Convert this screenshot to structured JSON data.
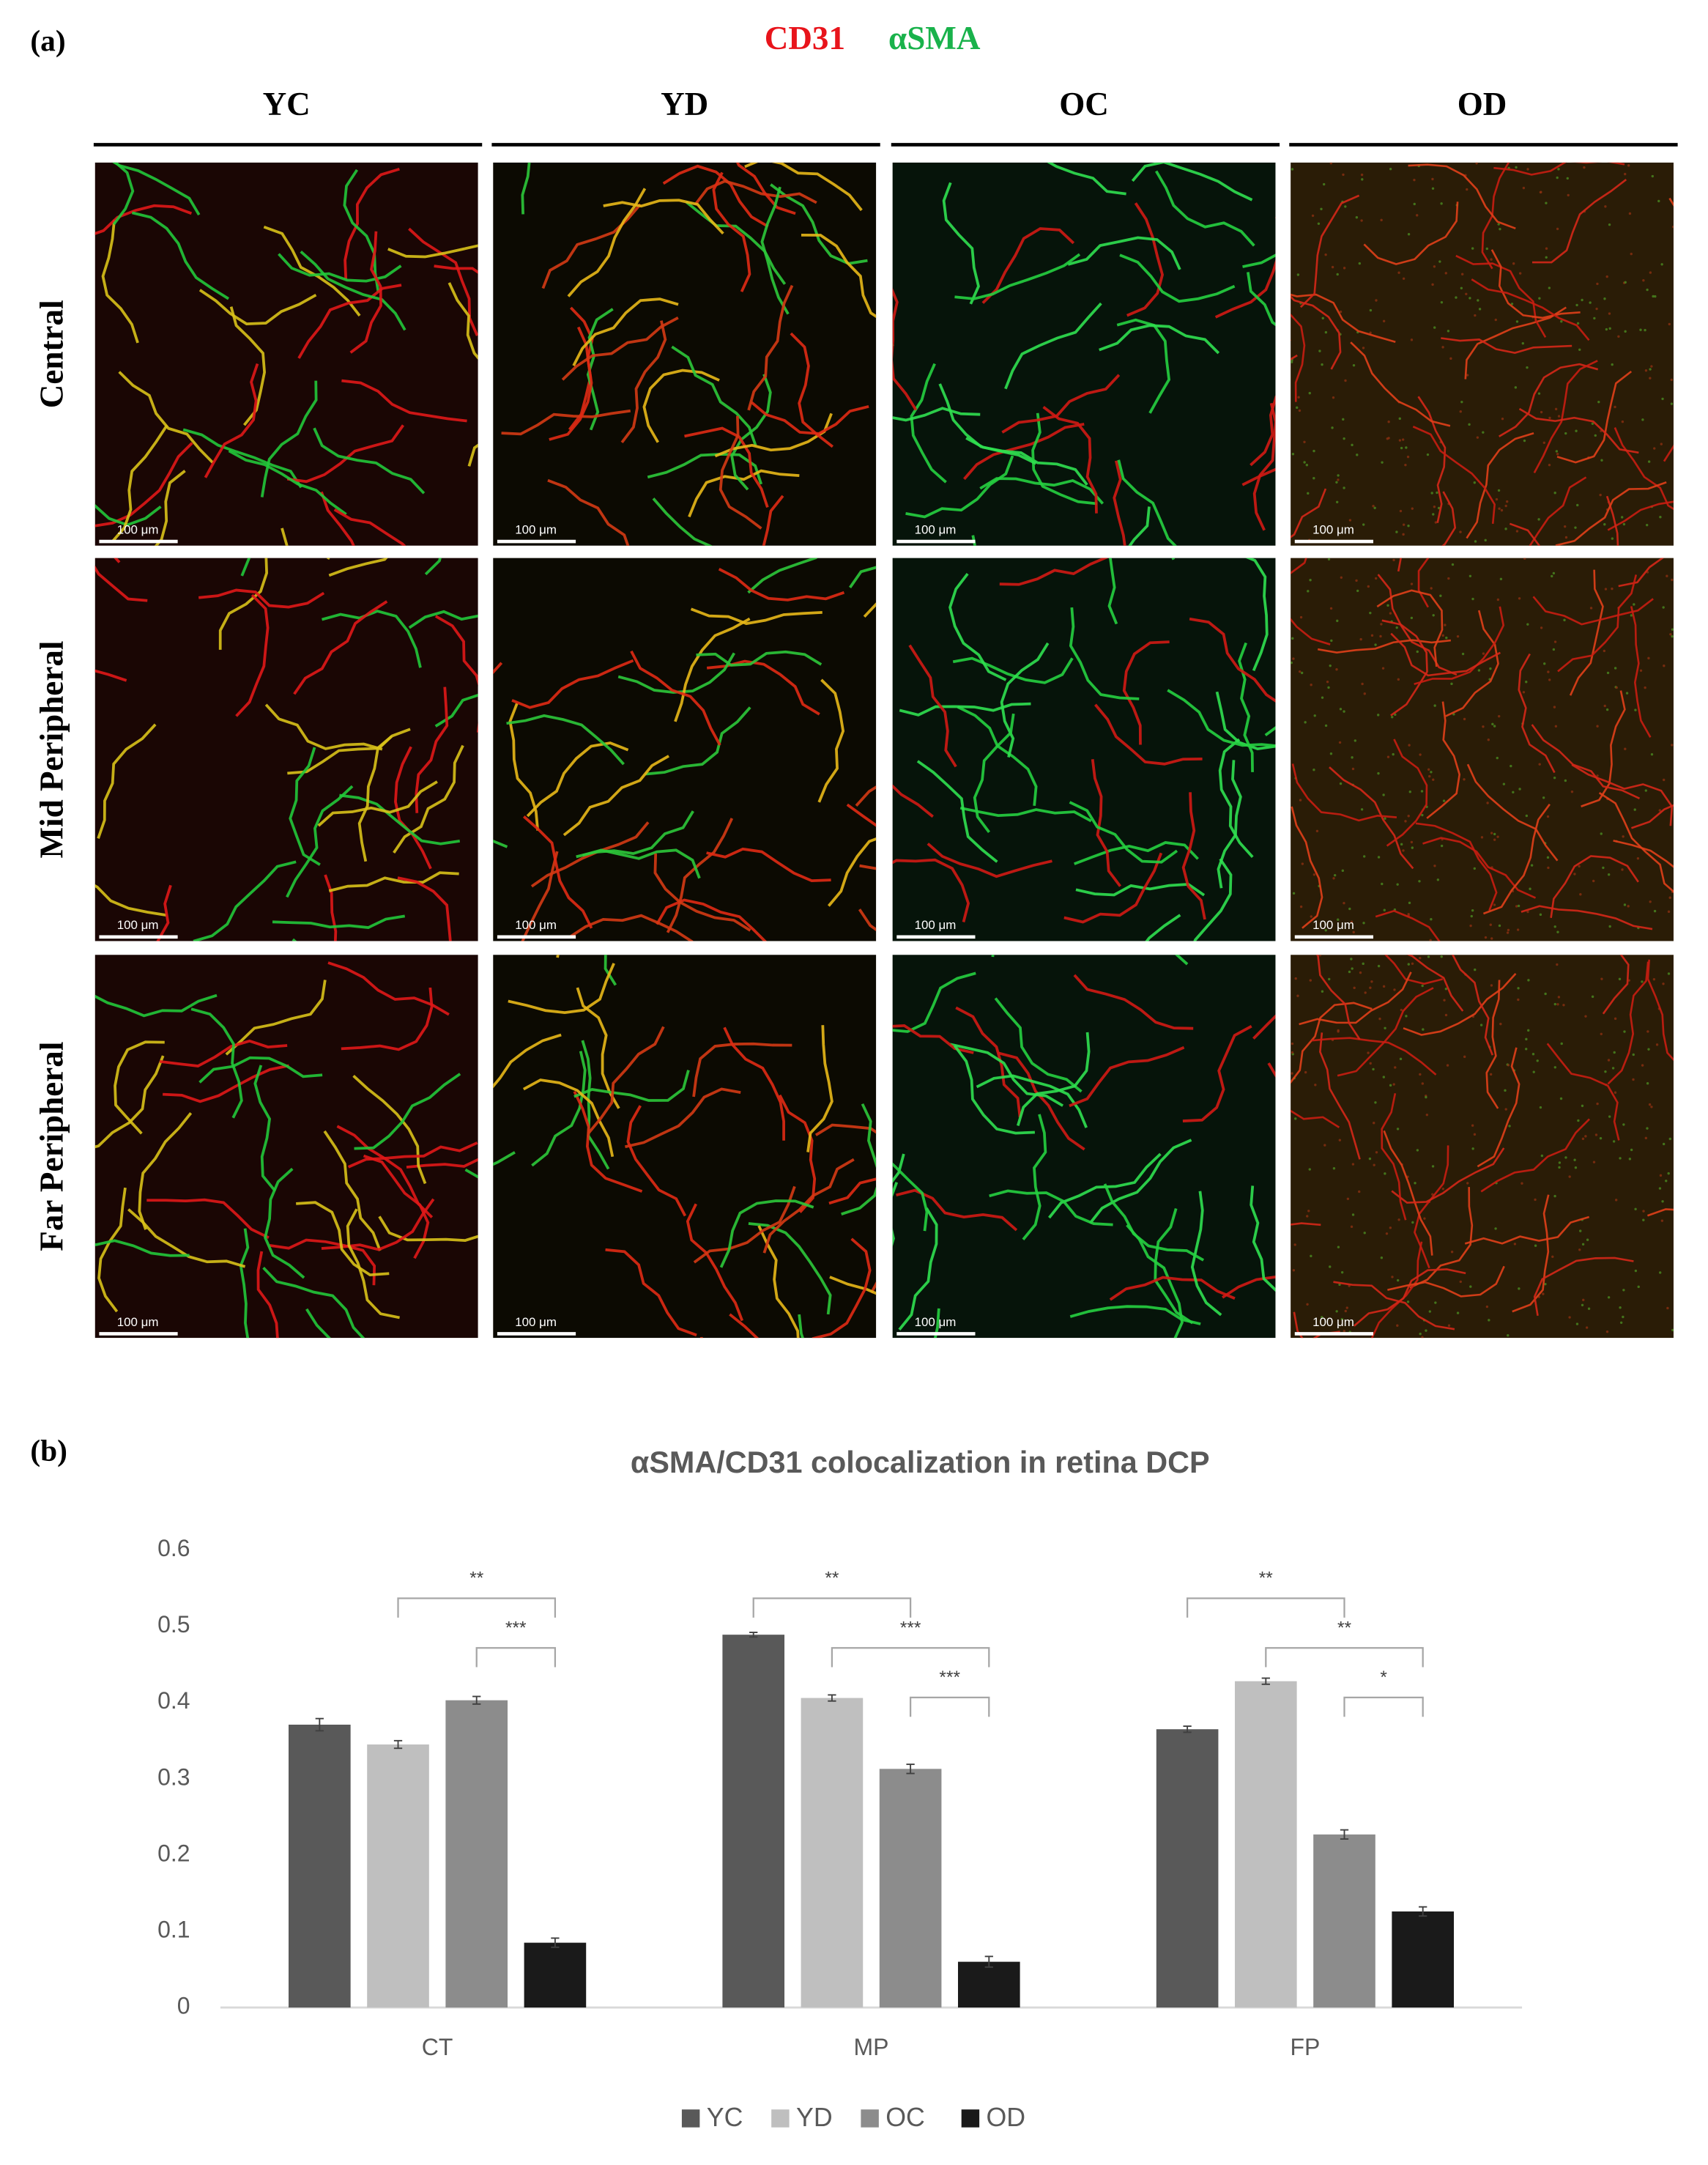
{
  "panel_a": {
    "label": "(a)",
    "stains": [
      {
        "text": "CD31",
        "color": "#e8141b"
      },
      {
        "text": "αSMA",
        "color": "#19b24b"
      }
    ],
    "columns": [
      "YC",
      "YD",
      "OC",
      "OD"
    ],
    "rows": [
      "Central",
      "Mid Peripheral",
      "Far Peripheral"
    ],
    "scale_labels": [
      [
        "100 μm",
        "100 μm",
        "100 μm",
        "100 μm"
      ],
      [
        "100 μm",
        "100 μm",
        "100 μm",
        "100 μm"
      ],
      [
        "100 μm",
        "100 μm",
        "100 μm",
        "100 μm"
      ]
    ]
  },
  "chart_data": {
    "type": "bar",
    "panel_label": "(b)",
    "title": "αSMA/CD31 colocalization in retina DCP",
    "categories": [
      "CT",
      "MP",
      "FP"
    ],
    "series": [
      {
        "name": "YC",
        "color": "#595959",
        "values": [
          0.371,
          0.489,
          0.365
        ],
        "errors": [
          0.008,
          0.003,
          0.004
        ]
      },
      {
        "name": "YD",
        "color": "#bfbfbf",
        "values": [
          0.345,
          0.406,
          0.428
        ],
        "errors": [
          0.005,
          0.004,
          0.004
        ]
      },
      {
        "name": "OC",
        "color": "#8c8c8c",
        "values": [
          0.403,
          0.313,
          0.227
        ],
        "errors": [
          0.005,
          0.006,
          0.006
        ]
      },
      {
        "name": "OD",
        "color": "#1a1a1a",
        "values": [
          0.085,
          0.06,
          0.126
        ],
        "errors": [
          0.006,
          0.007,
          0.006
        ]
      }
    ],
    "ylim": [
      0,
      0.6
    ],
    "yticks": [
      0,
      0.1,
      0.2,
      0.3,
      0.4,
      0.5,
      0.6
    ],
    "grid": false,
    "legend": "bottom",
    "brackets": [
      {
        "category": "CT",
        "between": [
          "YD",
          "OD"
        ],
        "label": "**"
      },
      {
        "category": "CT",
        "between": [
          "OC",
          "OD"
        ],
        "label": "***"
      },
      {
        "category": "MP",
        "between": [
          "YC",
          "OC"
        ],
        "label": "**"
      },
      {
        "category": "MP",
        "between": [
          "YD",
          "OD"
        ],
        "label": "***"
      },
      {
        "category": "MP",
        "between": [
          "OC",
          "OD"
        ],
        "label": "***"
      },
      {
        "category": "FP",
        "between": [
          "YC",
          "OC"
        ],
        "label": "**"
      },
      {
        "category": "FP",
        "between": [
          "YD",
          "OD"
        ],
        "label": "**"
      },
      {
        "category": "FP",
        "between": [
          "OC",
          "OD"
        ],
        "label": "*"
      }
    ]
  }
}
